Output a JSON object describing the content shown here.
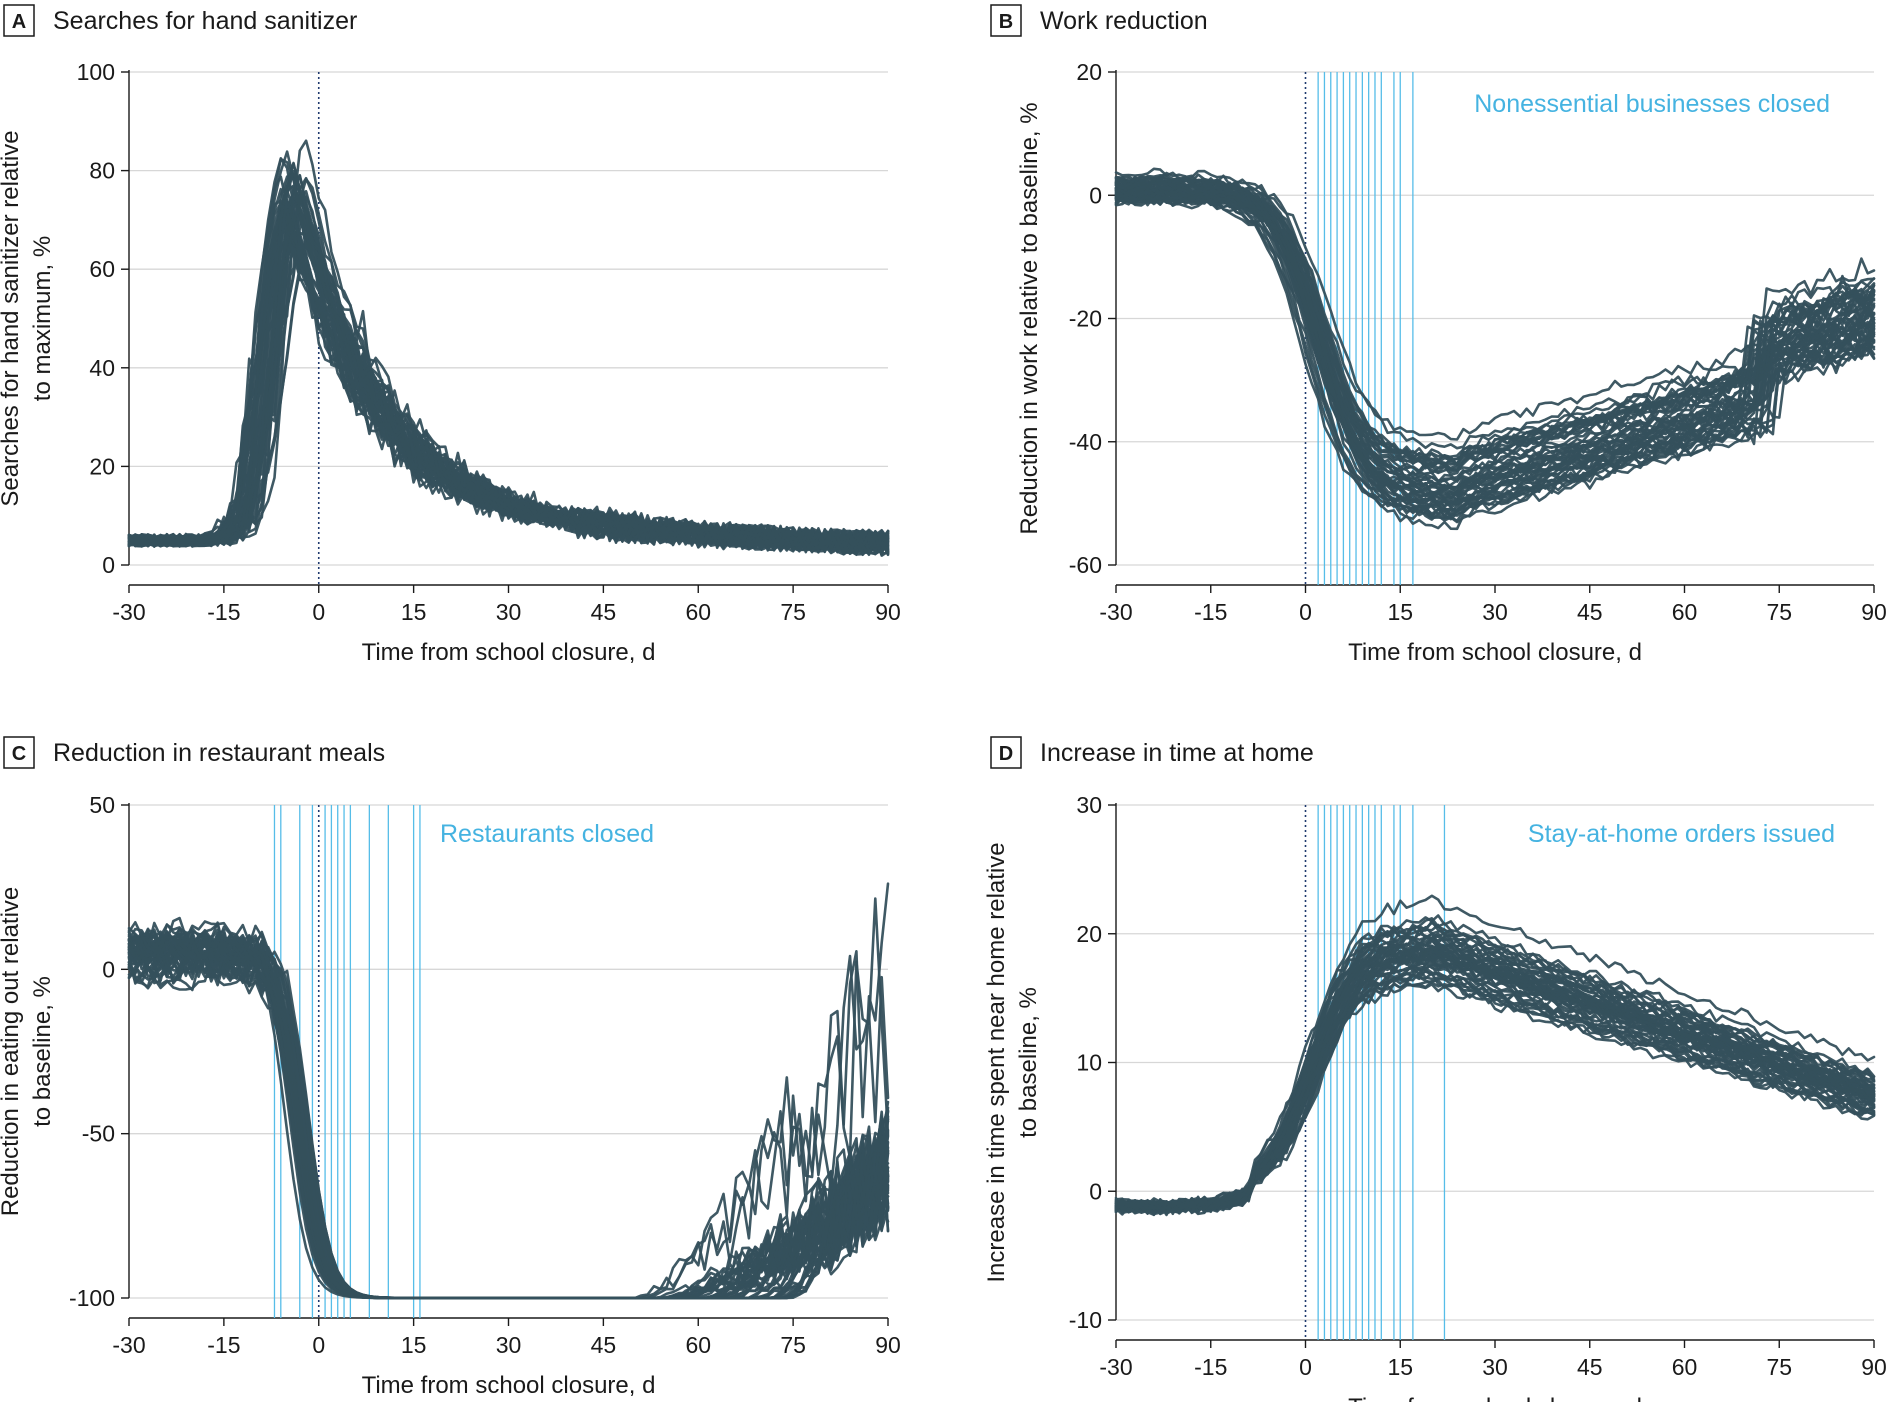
{
  "colors": {
    "series": "#35505c",
    "policy_line": "#56bde8",
    "annotation": "#45b3e1",
    "grid": "#d7d7d7"
  },
  "chart_data": [
    {
      "id": "A",
      "type": "line",
      "letter": "A",
      "title": "Searches for hand sanitizer",
      "xlabel": "Time from school closure, d",
      "ylabel": [
        "Searches for hand sanitizer relative",
        "to maximum, %"
      ],
      "xlim": [
        -30,
        90
      ],
      "ylim": [
        0,
        100
      ],
      "xticks": [
        -30,
        -15,
        0,
        15,
        30,
        45,
        60,
        75,
        90
      ],
      "yticks": [
        0,
        20,
        40,
        60,
        80,
        100
      ],
      "annotation": "",
      "policy_lines": [],
      "shape": {
        "pre": 5,
        "peak": 75,
        "peak_day": -4,
        "rise": 4.5,
        "decay": 11,
        "tail": 9,
        "spread": 8,
        "noise": 2.5
      },
      "series_count": 50
    },
    {
      "id": "B",
      "type": "line",
      "letter": "B",
      "title": "Work reduction",
      "xlabel": "Time from school closure, d",
      "ylabel": [
        "Reduction in work relative to baseline, %"
      ],
      "xlim": [
        -30,
        90
      ],
      "ylim": [
        -60,
        20
      ],
      "xticks": [
        -30,
        -15,
        0,
        15,
        30,
        45,
        60,
        75,
        90
      ],
      "yticks": [
        -60,
        -40,
        -20,
        0,
        20
      ],
      "annotation": "Nonessential businesses closed",
      "policy_lines": [
        2,
        3,
        4,
        5,
        6,
        7,
        8,
        9,
        10,
        11,
        12,
        14,
        15,
        17
      ],
      "shape": {
        "pre": 1,
        "drop_day": 2,
        "drop_width": 3.5,
        "trough": -46,
        "trough_day": 24,
        "recovery": 0.26,
        "jump_day": 72,
        "jump": 8,
        "spread": 6,
        "noise": 0.8
      },
      "series_count": 50
    },
    {
      "id": "C",
      "type": "line",
      "letter": "C",
      "title": "Reduction in restaurant meals",
      "xlabel": "Time from school closure, d",
      "ylabel": [
        "Reduction in eating out relative",
        "to baseline, %"
      ],
      "xlim": [
        -30,
        90
      ],
      "ylim": [
        -100,
        50
      ],
      "xticks": [
        -30,
        -15,
        0,
        15,
        30,
        45,
        60,
        75,
        90
      ],
      "yticks": [
        -100,
        -50,
        0,
        50
      ],
      "annotation": "Restaurants closed",
      "policy_lines": [
        -7,
        -6,
        -3,
        -1,
        1,
        2,
        3,
        4,
        5,
        8,
        11,
        15,
        16
      ],
      "shape": {
        "pre": 5,
        "floor": -100,
        "drop_day": -3,
        "drop_width": 1.8,
        "recover_start": 50,
        "spread": 4,
        "noise": 3
      },
      "series_count": 50
    },
    {
      "id": "D",
      "type": "line",
      "letter": "D",
      "title": "Increase in time at home",
      "xlabel": "Time from school closure, d",
      "ylabel": [
        "Increase in time spent near home relative",
        "to baseline, %"
      ],
      "xlim": [
        -30,
        90
      ],
      "ylim": [
        -10,
        30
      ],
      "xticks": [
        -30,
        -15,
        0,
        15,
        30,
        45,
        60,
        75,
        90
      ],
      "yticks": [
        -10,
        0,
        10,
        20,
        30
      ],
      "annotation": "Stay-at-home orders issued",
      "policy_lines": [
        2,
        3,
        4,
        5,
        6,
        7,
        8,
        9,
        10,
        11,
        12,
        14,
        15,
        17,
        22
      ],
      "shape": {
        "pre": 0,
        "rise_day": 1,
        "rise_width": 3.5,
        "peak": 18,
        "peak_day": 20,
        "end": 7,
        "spread": 3,
        "noise": 0.4
      },
      "series_count": 50
    }
  ]
}
